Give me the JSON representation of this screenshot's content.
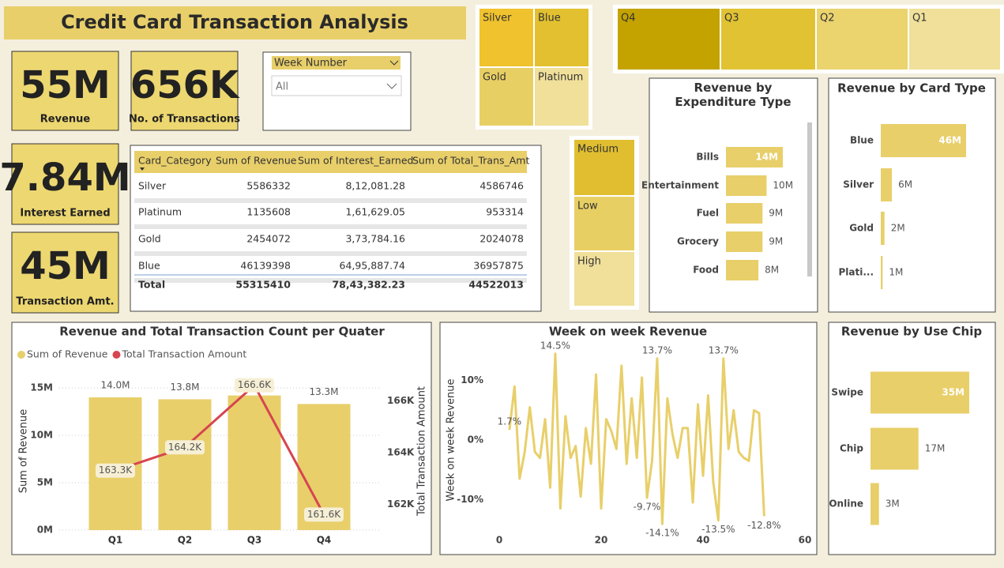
{
  "title": "Credit Card Transaction Analysis",
  "kpis": [
    {
      "value": "55M",
      "label": "Revenue"
    },
    {
      "value": "656K",
      "label": "No. of Transactions"
    },
    {
      "value": "7.84M",
      "label": "Interest Earned"
    },
    {
      "value": "45M",
      "label": "Transaction Amt."
    }
  ],
  "slicer": {
    "label": "Week Number",
    "selection": "All"
  },
  "card_tiles": [
    "Silver",
    "Blue",
    "Gold",
    "Platinum"
  ],
  "quarter_tiles": [
    "Q4",
    "Q3",
    "Q2",
    "Q1"
  ],
  "level_tiles": [
    "Medium",
    "Low",
    "High"
  ],
  "table": {
    "columns": [
      "Card_Category",
      "Sum of Revenue",
      "Sum of Interest_Earned",
      "Sum of Total_Trans_Amt"
    ],
    "rows": [
      [
        "Silver",
        "5586332",
        "8,12,081.28",
        "4586746"
      ],
      [
        "Platinum",
        "1135608",
        "1,61,629.05",
        "953314"
      ],
      [
        "Gold",
        "2454072",
        "3,73,784.16",
        "2024078"
      ],
      [
        "Blue",
        "46139398",
        "64,95,887.74",
        "36957875"
      ]
    ],
    "total": [
      "Total",
      "55315410",
      "78,43,382.23",
      "44522013"
    ]
  },
  "chart_data": [
    {
      "type": "combo",
      "title": "Revenue and Total Transaction Count per Quater",
      "categories": [
        "Q1",
        "Q2",
        "Q3",
        "Q4"
      ],
      "series": [
        {
          "name": "Sum of Revenue",
          "kind": "bar",
          "color": "#e8cf6a",
          "values": [
            14000000,
            13800000,
            14200000,
            13300000
          ],
          "value_labels": [
            "14.0M",
            "13.8M",
            "14.2M",
            "13.3M"
          ]
        },
        {
          "name": "Total Transaction Amount",
          "kind": "line",
          "axis": "y2",
          "color": "#d64550",
          "values": [
            163300,
            164200,
            166600,
            161600
          ],
          "value_labels": [
            "163.3K",
            "164.2K",
            "166.6K",
            "161.6K"
          ]
        }
      ],
      "ylabel": "Sum of Revenue",
      "y2label": "Total Transaction Amount",
      "ylim": [
        0,
        15000000
      ],
      "yticks": [
        {
          "value": 0,
          "label": "0M"
        },
        {
          "value": 5000000,
          "label": "5M"
        },
        {
          "value": 10000000,
          "label": "10M"
        },
        {
          "value": 15000000,
          "label": "15M"
        }
      ],
      "y2lim": [
        161000,
        166500
      ],
      "y2ticks": [
        {
          "value": 162000,
          "label": "162K"
        },
        {
          "value": 164000,
          "label": "164K"
        },
        {
          "value": 166000,
          "label": "166K"
        }
      ],
      "grid": true
    },
    {
      "type": "line",
      "title": "Week on week Revenue",
      "ylabel": "Week on week Revenue",
      "color": "#e8cf6a",
      "x": [
        2,
        3,
        4,
        5,
        6,
        7,
        8,
        9,
        10,
        11,
        12,
        13,
        14,
        15,
        16,
        17,
        18,
        19,
        20,
        21,
        22,
        23,
        24,
        25,
        26,
        27,
        28,
        29,
        30,
        31,
        32,
        33,
        34,
        35,
        36,
        37,
        38,
        39,
        40,
        41,
        42,
        43,
        44,
        45,
        46,
        47,
        48,
        49,
        50,
        51,
        52
      ],
      "values": [
        1.7,
        9,
        -6.5,
        -2,
        5.5,
        -2,
        -3,
        3.5,
        -8,
        14.5,
        -11.5,
        4,
        -3,
        -1,
        -9.5,
        2,
        -4,
        11,
        -11.5,
        3.5,
        1.5,
        -1.5,
        12.5,
        -4,
        7,
        -3,
        10.5,
        -9.7,
        -3.5,
        13.7,
        -14.1,
        7,
        1,
        -3,
        2,
        2,
        -10.5,
        6,
        -6,
        7.5,
        -7,
        -13.5,
        13.7,
        -1.5,
        5,
        -2,
        -3,
        -3.5,
        5,
        4.5,
        -12.8
      ],
      "value_labels": [
        "1.7%",
        null,
        null,
        null,
        null,
        null,
        null,
        null,
        null,
        "14.5%",
        null,
        null,
        null,
        null,
        null,
        null,
        null,
        null,
        null,
        null,
        null,
        null,
        null,
        null,
        null,
        null,
        null,
        "-9.7%",
        null,
        "13.7%",
        "-14.1%",
        null,
        null,
        null,
        null,
        null,
        null,
        null,
        null,
        null,
        null,
        "-13.5%",
        "13.7%",
        null,
        null,
        null,
        null,
        null,
        null,
        null,
        "-12.8%"
      ],
      "xlim": [
        0,
        60
      ],
      "xticks": [
        0,
        20,
        40,
        60
      ],
      "ylim": [
        -15,
        15
      ],
      "yticks": [
        {
          "value": -10,
          "label": "-10%"
        },
        {
          "value": 0,
          "label": "0%"
        },
        {
          "value": 10,
          "label": "10%"
        }
      ]
    },
    {
      "type": "hbar",
      "title": "Revenue by Expenditure Type",
      "color": "#e8cf6a",
      "categories": [
        "Bills",
        "Entertainment",
        "Fuel",
        "Grocery",
        "Food"
      ],
      "values": [
        14000000,
        10000000,
        9000000,
        9000000,
        8000000
      ],
      "value_labels": [
        "14M",
        "10M",
        "9M",
        "9M",
        "8M"
      ]
    },
    {
      "type": "hbar",
      "title": "Revenue by Card Type",
      "color": "#e8cf6a",
      "categories": [
        "Blue",
        "Silver",
        "Gold",
        "Plati..."
      ],
      "values": [
        46000000,
        6000000,
        2000000,
        1000000
      ],
      "value_labels": [
        "46M",
        "6M",
        "2M",
        "1M"
      ]
    },
    {
      "type": "hbar",
      "title": "Revenue by Use Chip",
      "color": "#e8cf6a",
      "categories": [
        "Swipe",
        "Chip",
        "Online"
      ],
      "values": [
        35000000,
        17000000,
        3000000
      ],
      "value_labels": [
        "35M",
        "17M",
        "3M"
      ]
    }
  ]
}
